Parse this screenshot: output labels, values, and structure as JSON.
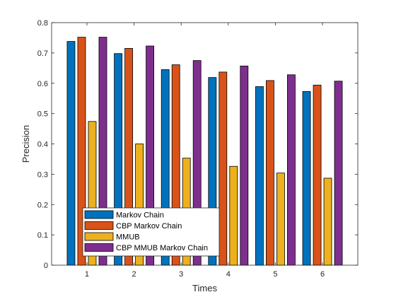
{
  "chart_data": {
    "type": "bar",
    "title": "",
    "xlabel": "Times",
    "ylabel": "Precision",
    "categories": [
      "1",
      "2",
      "3",
      "4",
      "5",
      "6"
    ],
    "ylim": [
      0,
      0.8
    ],
    "yticks": [
      "0",
      "0.1",
      "0.2",
      "0.3",
      "0.4",
      "0.5",
      "0.6",
      "0.7",
      "0.8"
    ],
    "grid": false,
    "legend_position": "bottom-left",
    "series": [
      {
        "name": "Markov Chain",
        "color": "#0072BD",
        "values": [
          0.738,
          0.698,
          0.645,
          0.619,
          0.589,
          0.573
        ]
      },
      {
        "name": "CBP Markov Chain",
        "color": "#D95319",
        "values": [
          0.752,
          0.715,
          0.661,
          0.637,
          0.609,
          0.594
        ]
      },
      {
        "name": "MMUB",
        "color": "#EDB120",
        "values": [
          0.474,
          0.4,
          0.353,
          0.326,
          0.304,
          0.287
        ]
      },
      {
        "name": "CBP MMUB Markov Chain",
        "color": "#7E2F8E",
        "values": [
          0.752,
          0.723,
          0.675,
          0.657,
          0.628,
          0.607
        ]
      }
    ]
  }
}
